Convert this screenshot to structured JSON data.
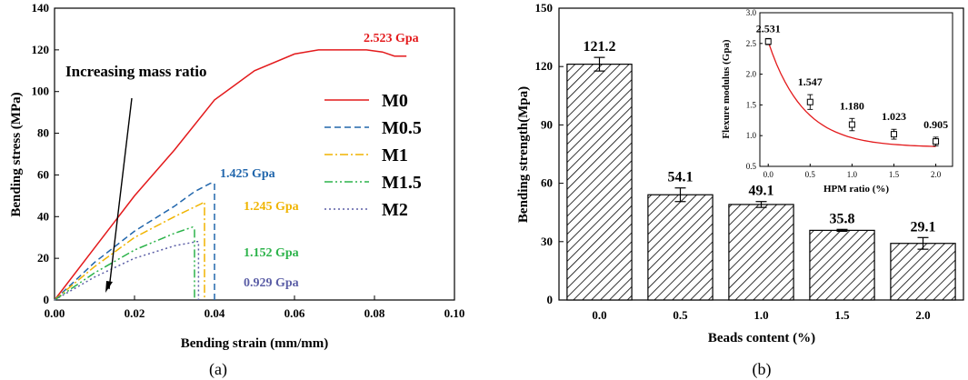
{
  "chart_data": [
    {
      "type": "line",
      "panel_label": "(a)",
      "xlabel": "Bending strain (mm/mm)",
      "ylabel": "Bending stress (MPa)",
      "xlim": [
        0,
        0.1
      ],
      "ylim": [
        0,
        140
      ],
      "xticks": [
        "0.00",
        "0.02",
        "0.04",
        "0.06",
        "0.08",
        "0.10"
      ],
      "yticks": [
        "0",
        "20",
        "40",
        "60",
        "80",
        "100",
        "120",
        "140"
      ],
      "annotation_text": "Increasing mass ratio",
      "legend_position": "center-right",
      "series": [
        {
          "name": "M0",
          "color": "#e31a1c",
          "dash": "solid",
          "modulus_label": "2.523 Gpa",
          "points": [
            [
              0,
              0
            ],
            [
              0.01,
              25
            ],
            [
              0.02,
              50
            ],
            [
              0.03,
              72
            ],
            [
              0.04,
              96
            ],
            [
              0.05,
              110
            ],
            [
              0.06,
              118
            ],
            [
              0.066,
              120
            ],
            [
              0.07,
              120
            ],
            [
              0.078,
              120
            ],
            [
              0.082,
              119
            ],
            [
              0.085,
              117
            ],
            [
              0.088,
              117
            ]
          ]
        },
        {
          "name": "M0.5",
          "color": "#2166ac",
          "dash": "dashed",
          "modulus_label": "1.425 Gpa",
          "points": [
            [
              0,
              0
            ],
            [
              0.01,
              18
            ],
            [
              0.02,
              33
            ],
            [
              0.03,
              45
            ],
            [
              0.035,
              52
            ],
            [
              0.039,
              56
            ],
            [
              0.04,
              56
            ],
            [
              0.04,
              0
            ]
          ]
        },
        {
          "name": "M1",
          "color": "#f0b400",
          "dash": "dashdot",
          "modulus_label": "1.245 Gpa",
          "points": [
            [
              0,
              0
            ],
            [
              0.01,
              16
            ],
            [
              0.02,
              30
            ],
            [
              0.03,
              40
            ],
            [
              0.0365,
              46
            ],
            [
              0.0375,
              47
            ],
            [
              0.0375,
              0
            ]
          ]
        },
        {
          "name": "M1.5",
          "color": "#2cb34a",
          "dash": "dashdotdot",
          "modulus_label": "1.152 Gpa",
          "points": [
            [
              0,
              0
            ],
            [
              0.01,
              13
            ],
            [
              0.02,
              24
            ],
            [
              0.03,
              32
            ],
            [
              0.0345,
              35
            ],
            [
              0.035,
              34
            ],
            [
              0.035,
              0
            ]
          ]
        },
        {
          "name": "M2",
          "color": "#5b5ea6",
          "dash": "dotted",
          "modulus_label": "0.929 Gpa",
          "points": [
            [
              0,
              0
            ],
            [
              0.01,
              11
            ],
            [
              0.02,
              20
            ],
            [
              0.03,
              26
            ],
            [
              0.0355,
              28
            ],
            [
              0.036,
              28
            ],
            [
              0.036,
              0
            ]
          ]
        }
      ]
    },
    {
      "type": "bar",
      "panel_label": "(b)",
      "xlabel": "Beads content (%)",
      "ylabel": "Bending strength(Mpa)",
      "categories": [
        "0.0",
        "0.5",
        "1.0",
        "1.5",
        "2.0"
      ],
      "values": [
        121.2,
        54.1,
        49.1,
        35.8,
        29.1
      ],
      "value_labels": [
        "121.2",
        "54.1",
        "49.1",
        "35.8",
        "29.1"
      ],
      "errors": [
        3.5,
        3.5,
        1.5,
        0.5,
        3.0
      ],
      "ylim": [
        0,
        150
      ],
      "yticks": [
        "0",
        "30",
        "60",
        "90",
        "120",
        "150"
      ],
      "inset": {
        "type": "scatter",
        "xlabel": "HPM ratio (%)",
        "ylabel": "Flexure  modulus (Gpa)",
        "x": [
          0.0,
          0.5,
          1.0,
          1.5,
          2.0
        ],
        "y": [
          2.531,
          1.547,
          1.18,
          1.023,
          0.905
        ],
        "y_labels": [
          "2.531",
          "1.547",
          "1.180",
          "1.023",
          "0.905"
        ],
        "errors": [
          0.05,
          0.12,
          0.1,
          0.08,
          0.07
        ],
        "xlim": [
          -0.1,
          2.2
        ],
        "ylim": [
          0.5,
          3.0
        ],
        "xticks": [
          "0.0",
          "0.5",
          "1.0",
          "1.5",
          "2.0"
        ],
        "yticks": [
          "0.5",
          "1.0",
          "1.5",
          "2.0",
          "2.5",
          "3.0"
        ],
        "fit_color": "#e31a1c"
      }
    }
  ]
}
